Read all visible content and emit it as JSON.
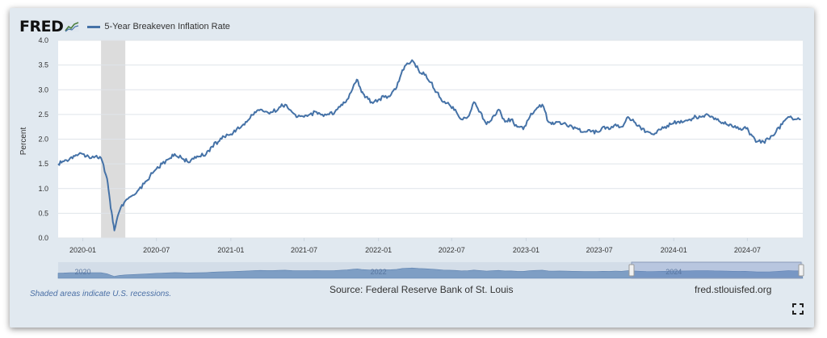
{
  "brand": {
    "name": "FRED"
  },
  "legend_label": "5-Year Breakeven Inflation Rate",
  "footer": {
    "recession_note": "Shaded areas indicate U.S. recessions.",
    "source": "Source: Federal Reserve Bank of St. Louis",
    "site": "fred.stlouisfed.org"
  },
  "icons": {
    "fullscreen": "fullscreen-icon",
    "logo": "fred-graph-icon"
  },
  "colors": {
    "line": "#4572a7",
    "recession": "#dcdcdc",
    "navigator": "#7e9ec4",
    "background": "#e1e9f0"
  },
  "chart_data": {
    "type": "line",
    "ylabel": "Percent",
    "ylim": [
      0,
      4
    ],
    "yticks": [
      "0.0",
      "0.5",
      "1.0",
      "1.5",
      "2.0",
      "2.5",
      "3.0",
      "3.5",
      "4.0"
    ],
    "xticks": [
      "2020-01",
      "2020-07",
      "2021-01",
      "2021-07",
      "2022-01",
      "2022-07",
      "2023-01",
      "2023-07",
      "2024-01",
      "2024-07"
    ],
    "xlim": [
      "2019-11-01",
      "2024-11-15"
    ],
    "grid": true,
    "recession": {
      "start": "2020-02-15",
      "end": "2020-04-15"
    },
    "navigator_labels": [
      "2020",
      "2022",
      "2024"
    ],
    "series": [
      {
        "name": "5-Year Breakeven Inflation Rate",
        "x": [
          "2019-11-01",
          "2019-11-15",
          "2019-12-01",
          "2019-12-15",
          "2020-01-01",
          "2020-01-15",
          "2020-02-01",
          "2020-02-15",
          "2020-03-01",
          "2020-03-10",
          "2020-03-19",
          "2020-04-01",
          "2020-04-15",
          "2020-05-01",
          "2020-05-15",
          "2020-06-01",
          "2020-06-15",
          "2020-07-01",
          "2020-07-15",
          "2020-08-01",
          "2020-08-15",
          "2020-09-01",
          "2020-09-15",
          "2020-10-01",
          "2020-10-15",
          "2020-11-01",
          "2020-11-15",
          "2020-12-01",
          "2020-12-15",
          "2021-01-01",
          "2021-01-15",
          "2021-02-01",
          "2021-02-15",
          "2021-03-01",
          "2021-03-15",
          "2021-04-01",
          "2021-04-15",
          "2021-05-01",
          "2021-05-15",
          "2021-06-01",
          "2021-06-15",
          "2021-07-01",
          "2021-07-15",
          "2021-08-01",
          "2021-08-15",
          "2021-09-01",
          "2021-09-15",
          "2021-10-01",
          "2021-10-15",
          "2021-11-01",
          "2021-11-10",
          "2021-11-20",
          "2021-12-01",
          "2021-12-15",
          "2022-01-01",
          "2022-01-15",
          "2022-02-01",
          "2022-02-15",
          "2022-03-01",
          "2022-03-10",
          "2022-03-25",
          "2022-04-10",
          "2022-04-25",
          "2022-05-10",
          "2022-05-25",
          "2022-06-10",
          "2022-06-25",
          "2022-07-10",
          "2022-07-25",
          "2022-08-10",
          "2022-08-25",
          "2022-09-10",
          "2022-09-25",
          "2022-10-10",
          "2022-10-25",
          "2022-11-10",
          "2022-11-25",
          "2022-12-10",
          "2022-12-25",
          "2023-01-10",
          "2023-01-25",
          "2023-02-10",
          "2023-02-25",
          "2023-03-10",
          "2023-03-25",
          "2023-04-10",
          "2023-04-25",
          "2023-05-10",
          "2023-05-25",
          "2023-06-10",
          "2023-06-25",
          "2023-07-10",
          "2023-07-25",
          "2023-08-10",
          "2023-08-25",
          "2023-09-10",
          "2023-09-25",
          "2023-10-10",
          "2023-10-25",
          "2023-11-10",
          "2023-11-25",
          "2023-12-10",
          "2023-12-25",
          "2024-01-10",
          "2024-01-25",
          "2024-02-10",
          "2024-02-25",
          "2024-03-10",
          "2024-03-25",
          "2024-04-10",
          "2024-04-25",
          "2024-05-10",
          "2024-05-25",
          "2024-06-10",
          "2024-06-25",
          "2024-07-10",
          "2024-07-25",
          "2024-08-10",
          "2024-08-25",
          "2024-09-10",
          "2024-09-25",
          "2024-10-10",
          "2024-10-25",
          "2024-11-10"
        ],
        "values": [
          1.5,
          1.55,
          1.62,
          1.68,
          1.7,
          1.65,
          1.65,
          1.62,
          1.2,
          0.6,
          0.15,
          0.55,
          0.75,
          0.85,
          0.95,
          1.1,
          1.25,
          1.4,
          1.5,
          1.6,
          1.7,
          1.62,
          1.55,
          1.6,
          1.65,
          1.7,
          1.85,
          1.95,
          2.05,
          2.1,
          2.2,
          2.3,
          2.4,
          2.55,
          2.6,
          2.55,
          2.55,
          2.65,
          2.7,
          2.55,
          2.45,
          2.45,
          2.5,
          2.55,
          2.5,
          2.5,
          2.55,
          2.7,
          2.8,
          3.1,
          3.2,
          2.95,
          2.85,
          2.75,
          2.8,
          2.85,
          2.9,
          3.05,
          3.4,
          3.5,
          3.6,
          3.4,
          3.3,
          3.15,
          2.95,
          2.75,
          2.7,
          2.6,
          2.4,
          2.45,
          2.75,
          2.55,
          2.3,
          2.45,
          2.6,
          2.35,
          2.4,
          2.25,
          2.2,
          2.45,
          2.6,
          2.7,
          2.35,
          2.3,
          2.35,
          2.3,
          2.25,
          2.2,
          2.15,
          2.15,
          2.15,
          2.25,
          2.2,
          2.3,
          2.25,
          2.45,
          2.35,
          2.25,
          2.15,
          2.1,
          2.2,
          2.25,
          2.3,
          2.35,
          2.35,
          2.4,
          2.45,
          2.45,
          2.5,
          2.4,
          2.35,
          2.3,
          2.25,
          2.2,
          2.25,
          2.1,
          1.95,
          1.95,
          2.0,
          2.15,
          2.3,
          2.45,
          2.4,
          2.4
        ]
      }
    ]
  }
}
